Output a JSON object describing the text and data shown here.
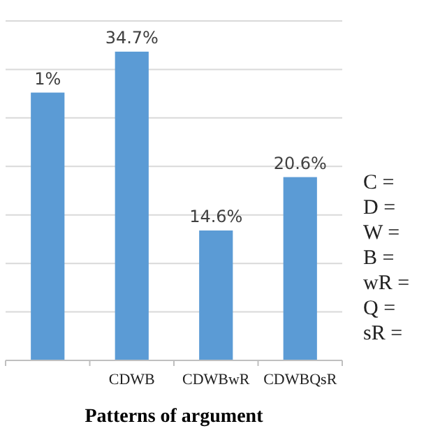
{
  "chart_data": {
    "type": "bar",
    "xlabel": "Patterns of argument",
    "categories": [
      null,
      "CDWB",
      "CDWBwR",
      "CDWBQsR"
    ],
    "values": [
      30.1,
      34.7,
      14.6,
      20.6
    ],
    "value_labels": [
      null,
      "34.7%",
      "14.6%",
      "20.6%"
    ],
    "color": "#5b9bd5",
    "ylim": [
      0,
      38.15
    ],
    "yticks": [
      {
        "value": 0,
        "label": null
      },
      {
        "value": 5.45,
        "label": null
      },
      {
        "value": 10.9,
        "label": null
      },
      {
        "value": 16.35,
        "label": null
      },
      {
        "value": 21.8,
        "label": null
      },
      {
        "value": 27.25,
        "label": null
      },
      {
        "value": 32.7,
        "label": null
      },
      {
        "value": 38.15,
        "label": null
      }
    ],
    "grid": "y",
    "tick_labels": "x",
    "annotations": [
      {
        "text": "1%",
        "y": 30.1
      },
      "C =",
      "D =",
      "W =",
      "B =",
      "wR =",
      "Q =",
      "sR ="
    ]
  }
}
